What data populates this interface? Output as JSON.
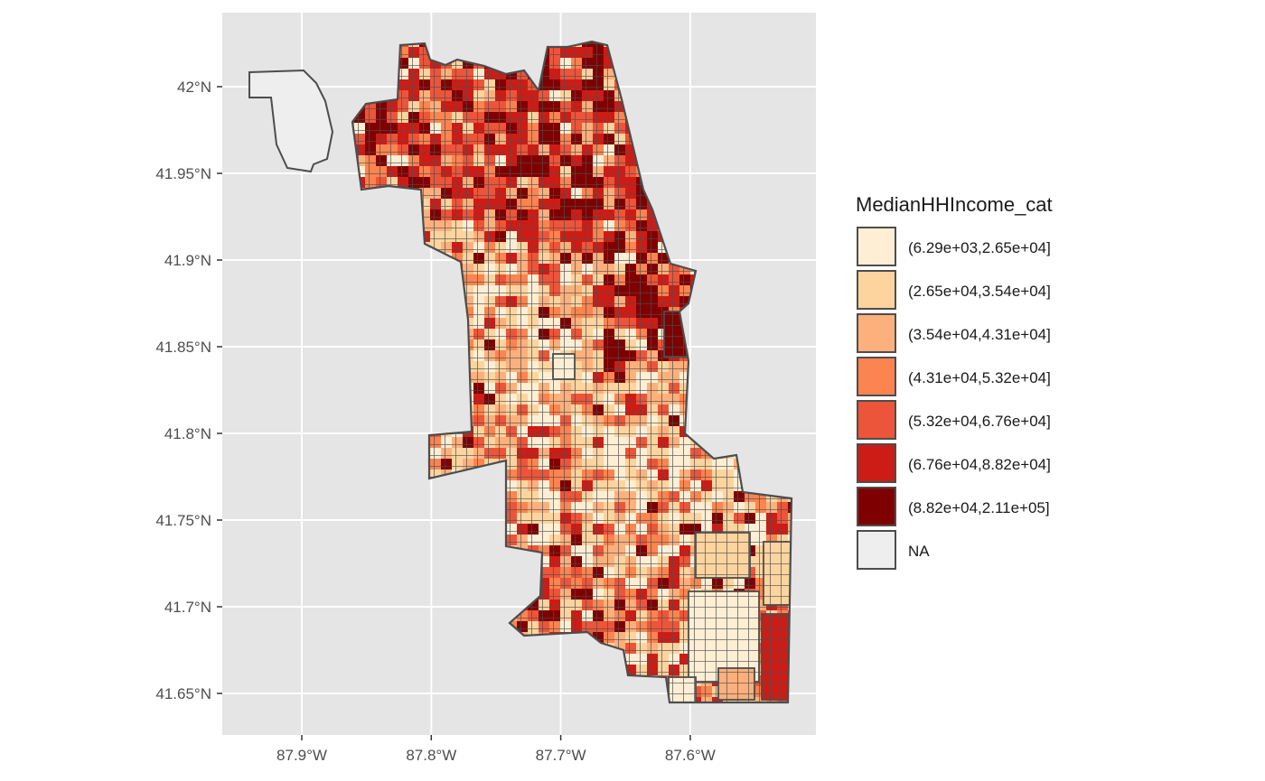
{
  "map": {
    "x_axis": {
      "ticks": [
        "87.9°W",
        "87.8°W",
        "87.7°W",
        "87.6°W"
      ],
      "values": [
        -87.9,
        -87.8,
        -87.7,
        -87.6
      ],
      "range": [
        -87.965,
        -87.505
      ]
    },
    "y_axis": {
      "ticks": [
        "41.65°N",
        "41.7°N",
        "41.75°N",
        "41.8°N",
        "41.85°N",
        "41.9°N",
        "41.95°N",
        "42°N"
      ],
      "values": [
        41.65,
        41.7,
        41.75,
        41.8,
        41.85,
        41.9,
        41.95,
        42.0
      ],
      "range": [
        41.627,
        42.042
      ]
    },
    "panel_background": "#e5e5e5",
    "grid_color": "#ffffff",
    "border_color": "#4d4d4d"
  },
  "legend": {
    "title": "MedianHHIncome_cat",
    "placement": "right",
    "items": [
      {
        "label": "(6.29e+03,2.65e+04]",
        "color": "#fdeed4"
      },
      {
        "label": "(2.65e+04,3.54e+04]",
        "color": "#fdd49e"
      },
      {
        "label": "(3.54e+04,4.31e+04]",
        "color": "#fdb07c"
      },
      {
        "label": "(4.31e+04,5.32e+04]",
        "color": "#fb8450"
      },
      {
        "label": "(5.32e+04,6.76e+04]",
        "color": "#ec5539"
      },
      {
        "label": "(6.76e+04,8.82e+04]",
        "color": "#cd1c16"
      },
      {
        "label": "(8.82e+04,2.11e+05]",
        "color": "#7f0000"
      },
      {
        "label": "NA",
        "color": "#eeeeee"
      }
    ]
  }
}
